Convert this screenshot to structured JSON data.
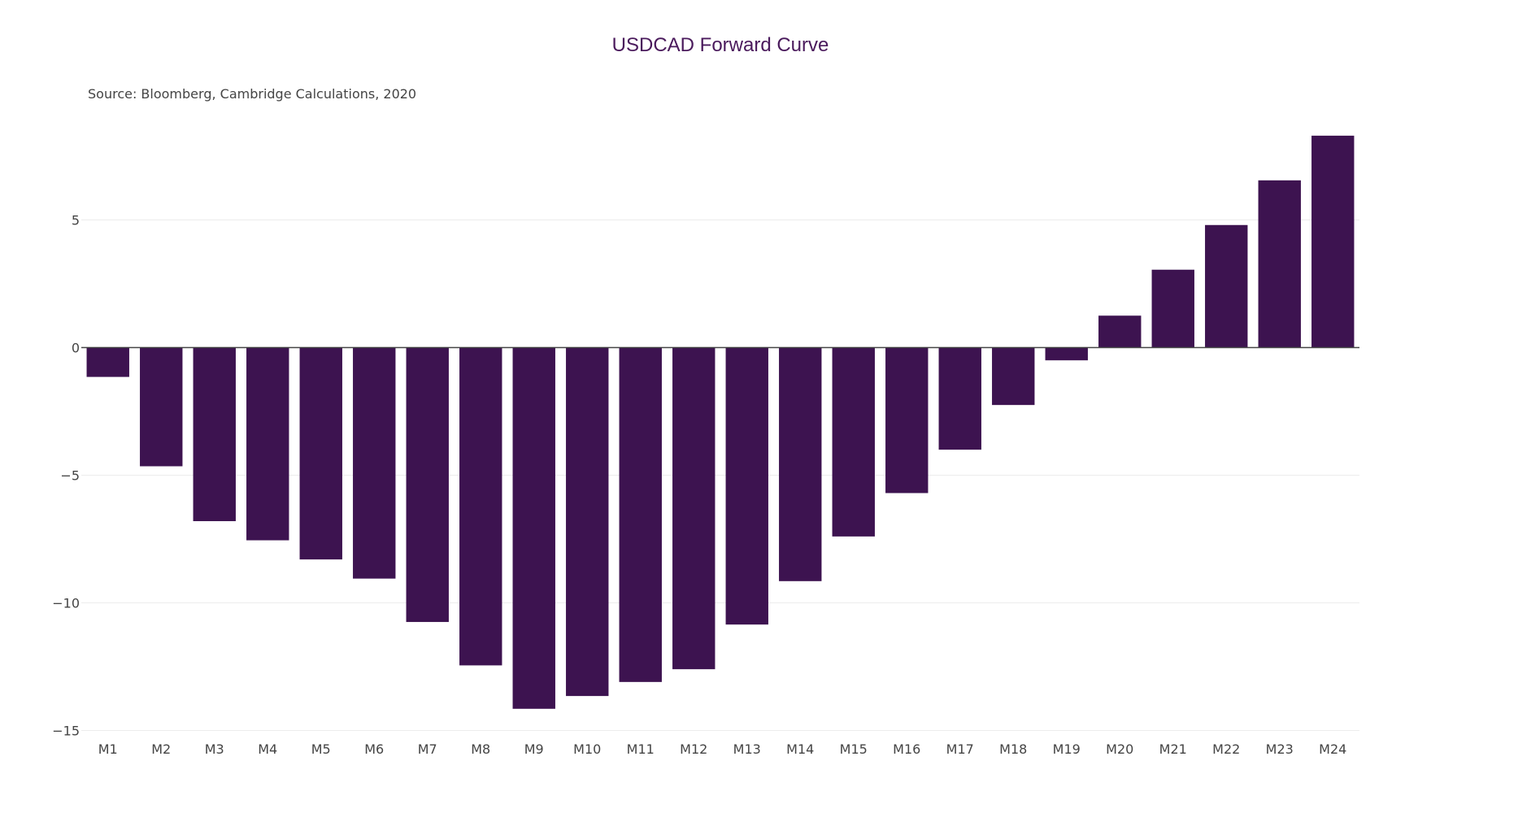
{
  "chart_data": {
    "type": "bar",
    "title": "USDCAD Forward Curve",
    "subtitle": "Source: Bloomberg, Cambridge Calculations, 2020",
    "xlabel": "",
    "ylabel": "",
    "categories": [
      "M1",
      "M2",
      "M3",
      "M4",
      "M5",
      "M6",
      "M7",
      "M8",
      "M9",
      "M10",
      "M11",
      "M12",
      "M13",
      "M14",
      "M15",
      "M16",
      "M17",
      "M18",
      "M19",
      "M20",
      "M21",
      "M22",
      "M23",
      "M24"
    ],
    "values": [
      -1.15,
      -4.65,
      -6.8,
      -7.55,
      -8.3,
      -9.05,
      -10.75,
      -12.45,
      -14.15,
      -13.65,
      -13.1,
      -12.6,
      -10.85,
      -9.15,
      -7.4,
      -5.7,
      -4.0,
      -2.25,
      -0.5,
      1.25,
      3.05,
      4.8,
      6.55,
      8.3
    ],
    "yticks": [
      5,
      0,
      -5,
      -10,
      -15
    ],
    "ytick_labels": [
      "5",
      "0",
      "−5",
      "−10",
      "−15"
    ],
    "ylim": [
      -15.3,
      9.0
    ],
    "grid": true,
    "legend": "none",
    "bar_color": "#3d1350"
  }
}
